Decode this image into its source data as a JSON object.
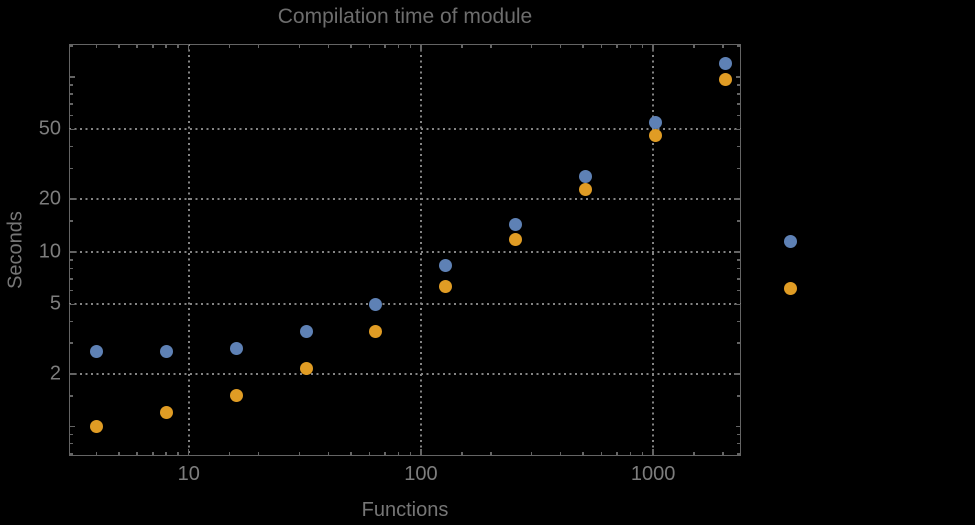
{
  "colors": {
    "background": "#000000",
    "frame": "#646464",
    "grid": "#848484",
    "title_text": "#6d6d6d",
    "axis_title_text": "#767676",
    "tick_label_text": "#7d7d7d",
    "series1": "#5E81B5",
    "series2": "#E09C24"
  },
  "chart_data": {
    "type": "scatter",
    "title": "Compilation time of module",
    "xlabel": "Functions",
    "ylabel": "Seconds",
    "x_scale": "log",
    "y_scale": "log",
    "xlim": [
      3.05,
      2390
    ],
    "ylim": [
      0.68,
      154
    ],
    "grid": "dotted",
    "x": [
      4,
      8,
      16,
      32,
      64,
      128,
      256,
      512,
      1024,
      2048
    ],
    "series": [
      {
        "name": "series-1",
        "color": "#5E81B5",
        "values": [
          2.7,
          2.7,
          2.8,
          3.5,
          5.0,
          8.3,
          14.3,
          27,
          55,
          119
        ]
      },
      {
        "name": "series-2",
        "color": "#E09C24",
        "values": [
          1.0,
          1.2,
          1.5,
          2.15,
          3.5,
          6.3,
          11.7,
          22.7,
          46,
          96
        ]
      }
    ],
    "x_ticks": {
      "major": [
        {
          "value": 10,
          "label": "10"
        },
        {
          "value": 100,
          "label": "100"
        },
        {
          "value": 1000,
          "label": "1000"
        }
      ],
      "minor": [
        4,
        5,
        6,
        7,
        8,
        9,
        15,
        20,
        30,
        40,
        50,
        60,
        70,
        80,
        90,
        150,
        200,
        300,
        400,
        500,
        600,
        700,
        800,
        900,
        1500,
        2000
      ]
    },
    "y_ticks": {
      "major": [
        {
          "value": 2,
          "label": "2"
        },
        {
          "value": 5,
          "label": "5"
        },
        {
          "value": 10,
          "label": "10"
        },
        {
          "value": 20,
          "label": "20"
        },
        {
          "value": 50,
          "label": "50"
        }
      ],
      "sub": [
        1,
        100
      ],
      "minor": [
        0.7,
        0.8,
        0.9,
        1.5,
        3,
        4,
        6,
        7,
        8,
        9,
        15,
        30,
        40,
        60,
        70,
        80,
        90,
        150
      ]
    },
    "legend": {
      "position": "right-of-plot",
      "markers": [
        {
          "series": "series-1",
          "color": "#5E81B5"
        },
        {
          "series": "series-2",
          "color": "#E09C24"
        }
      ]
    }
  }
}
